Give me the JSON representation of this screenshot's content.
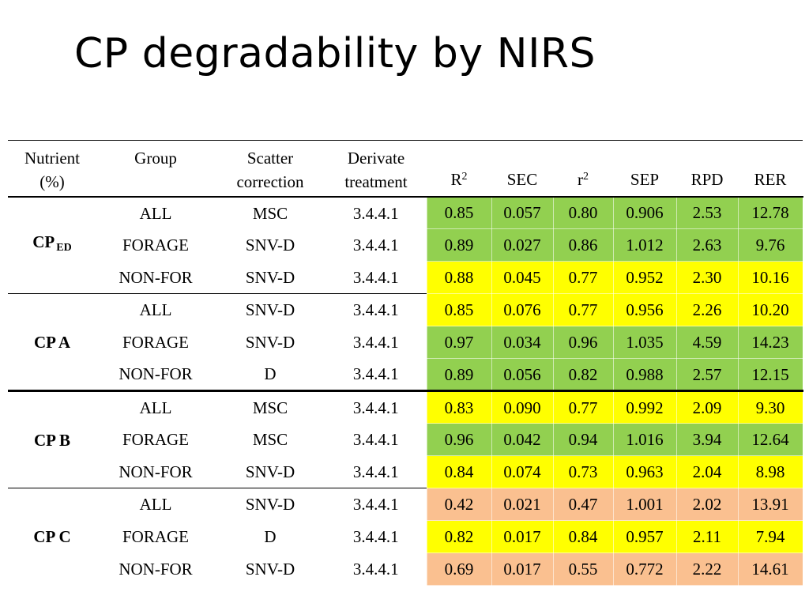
{
  "title": "CP degradability by NIRS",
  "colors": {
    "green": "#92d050",
    "yellow": "#ffff00",
    "salmon": "#fac090"
  },
  "table": {
    "headers": {
      "nutrient": [
        "Nutrient",
        "(%)"
      ],
      "group": [
        "Group"
      ],
      "scatter": [
        "Scatter",
        "correction"
      ],
      "derivate": [
        "Derivate",
        "treatment"
      ],
      "r2": {
        "base": "R",
        "sup": "2"
      },
      "sec": "SEC",
      "rr2": {
        "base": "r",
        "sup": "2"
      },
      "sep": "SEP",
      "rpd": "RPD",
      "rer": "RER"
    },
    "groups": [
      {
        "nutrient": "CP",
        "nutrient_sub": "ED",
        "rows": [
          {
            "group": "ALL",
            "scatter": "MSC",
            "derivate": "3.4.4.1",
            "color": "green",
            "metrics": [
              "0.85",
              "0.057",
              "0.80",
              "0.906",
              "2.53",
              "12.78"
            ]
          },
          {
            "group": "FORAGE",
            "scatter": "SNV-D",
            "derivate": "3.4.4.1",
            "color": "green",
            "metrics": [
              "0.89",
              "0.027",
              "0.86",
              "1.012",
              "2.63",
              "9.76"
            ]
          },
          {
            "group": "NON-FOR",
            "scatter": "SNV-D",
            "derivate": "3.4.4.1",
            "color": "yellow",
            "metrics": [
              "0.88",
              "0.045",
              "0.77",
              "0.952",
              "2.30",
              "10.16"
            ]
          }
        ]
      },
      {
        "nutrient": "CP A",
        "nutrient_sub": "",
        "rows": [
          {
            "group": "ALL",
            "scatter": "SNV-D",
            "derivate": "3.4.4.1",
            "color": "yellow",
            "metrics": [
              "0.85",
              "0.076",
              "0.77",
              "0.956",
              "2.26",
              "10.20"
            ]
          },
          {
            "group": "FORAGE",
            "scatter": "SNV-D",
            "derivate": "3.4.4.1",
            "color": "green",
            "metrics": [
              "0.97",
              "0.034",
              "0.96",
              "1.035",
              "4.59",
              "14.23"
            ]
          },
          {
            "group": "NON-FOR",
            "scatter": "D",
            "derivate": "3.4.4.1",
            "color": "green",
            "metrics": [
              "0.89",
              "0.056",
              "0.82",
              "0.988",
              "2.57",
              "12.15"
            ]
          }
        ]
      },
      {
        "nutrient": "CP B",
        "nutrient_sub": "",
        "rows": [
          {
            "group": "ALL",
            "scatter": "MSC",
            "derivate": "3.4.4.1",
            "color": "yellow",
            "metrics": [
              "0.83",
              "0.090",
              "0.77",
              "0.992",
              "2.09",
              "9.30"
            ]
          },
          {
            "group": "FORAGE",
            "scatter": "MSC",
            "derivate": "3.4.4.1",
            "color": "green",
            "metrics": [
              "0.96",
              "0.042",
              "0.94",
              "1.016",
              "3.94",
              "12.64"
            ]
          },
          {
            "group": "NON-FOR",
            "scatter": "SNV-D",
            "derivate": "3.4.4.1",
            "color": "yellow",
            "metrics": [
              "0.84",
              "0.074",
              "0.73",
              "0.963",
              "2.04",
              "8.98"
            ]
          }
        ]
      },
      {
        "nutrient": "CP C",
        "nutrient_sub": "",
        "rows": [
          {
            "group": "ALL",
            "scatter": "SNV-D",
            "derivate": "3.4.4.1",
            "color": "salmon",
            "metrics": [
              "0.42",
              "0.021",
              "0.47",
              "1.001",
              "2.02",
              "13.91"
            ]
          },
          {
            "group": "FORAGE",
            "scatter": "D",
            "derivate": "3.4.4.1",
            "color": "yellow",
            "metrics": [
              "0.82",
              "0.017",
              "0.84",
              "0.957",
              "2.11",
              "7.94"
            ]
          },
          {
            "group": "NON-FOR",
            "scatter": "SNV-D",
            "derivate": "3.4.4.1",
            "color": "salmon",
            "metrics": [
              "0.69",
              "0.017",
              "0.55",
              "0.772",
              "2.22",
              "14.61"
            ]
          }
        ]
      }
    ]
  }
}
